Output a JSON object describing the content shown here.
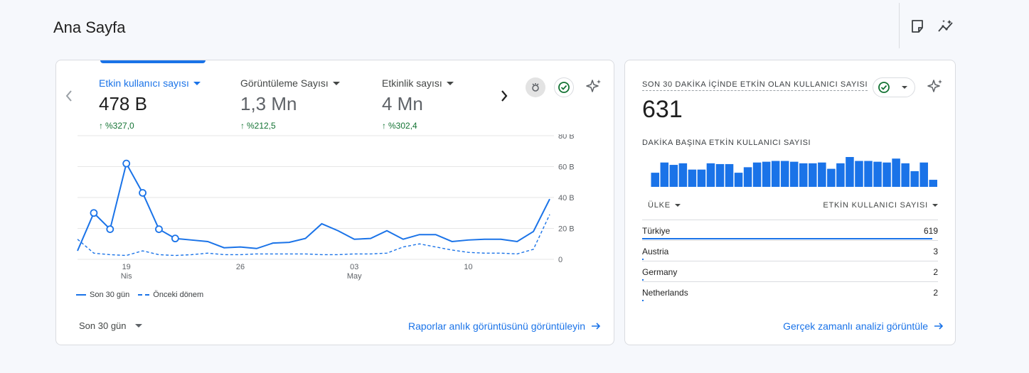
{
  "page": {
    "title": "Ana Sayfa"
  },
  "header_icons": [
    "note-icon",
    "insights-icon"
  ],
  "main_card": {
    "metrics": [
      {
        "label": "Etkin kullanıcı sayısı",
        "value": "478 B",
        "change": "%327,0",
        "active": true
      },
      {
        "label": "Görüntüleme Sayısı",
        "value": "1,3 Mn",
        "change": "%212,5",
        "active": false
      },
      {
        "label": "Etkinlik sayısı",
        "value": "4 Mn",
        "change": "%302,4",
        "active": false
      }
    ],
    "legend": {
      "current": "Son 30 gün",
      "previous": "Önceki dönem"
    },
    "range_label": "Son 30 gün",
    "link_label": "Raporlar anlık görüntüsünü görüntüleyin"
  },
  "chart_data": {
    "type": "line",
    "y_tick_labels": [
      "80 B",
      "60 B",
      "40 B",
      "20 B",
      "0"
    ],
    "ylim": [
      0,
      80
    ],
    "x_tick_labels": [
      {
        "day": "19",
        "month": "Nis",
        "index": 3
      },
      {
        "day": "26",
        "month": "",
        "index": 10
      },
      {
        "day": "03",
        "month": "May",
        "index": 17
      },
      {
        "day": "10",
        "month": "",
        "index": 24
      }
    ],
    "series": [
      {
        "name": "Son 30 gün",
        "style": "solid",
        "values": [
          5.5,
          30,
          19.5,
          62,
          43,
          19.5,
          13.5,
          12.5,
          11.5,
          7.5,
          8,
          7,
          10.5,
          11,
          13.5,
          23,
          18.5,
          13,
          13.5,
          18.5,
          13,
          16,
          16,
          11.5,
          12.5,
          13,
          13,
          11.5,
          18,
          39
        ],
        "markers": [
          1,
          2,
          3,
          4,
          5,
          6
        ]
      },
      {
        "name": "Önceki dönem",
        "style": "dashed",
        "values": [
          13,
          4,
          3,
          2.5,
          5.5,
          3,
          2.5,
          3,
          4,
          3,
          3,
          3.5,
          3.5,
          3.5,
          3.5,
          3,
          3,
          3.5,
          3.5,
          4,
          8,
          10,
          8,
          6,
          4.5,
          4,
          4,
          3.5,
          6.5,
          29
        ]
      }
    ],
    "color": "#1a73e8",
    "grid": true
  },
  "realtime_card": {
    "title": "SON 30 DAKİKA İÇİNDE ETKİN OLAN KULLANICI SAYISI",
    "value": "631",
    "subtitle": "DAKİKA BAŞINA ETKİN KULLANICI SAYISI",
    "minute_bars": [
      18,
      31,
      28,
      30,
      22,
      22,
      30,
      29,
      29,
      18,
      25,
      31,
      32,
      33,
      33,
      32,
      30,
      30,
      31,
      23,
      30,
      38,
      33,
      33,
      32,
      31,
      36,
      30,
      20,
      31,
      9
    ],
    "columns": {
      "country": "ÜLKE",
      "users": "ETKİN KULLANICI SAYISI"
    },
    "rows": [
      {
        "country": "Türkiye",
        "value": "619",
        "share": 0.98
      },
      {
        "country": "Austria",
        "value": "3",
        "share": 0.005
      },
      {
        "country": "Germany",
        "value": "2",
        "share": 0.004
      },
      {
        "country": "Netherlands",
        "value": "2",
        "share": 0.004
      }
    ],
    "link_label": "Gerçek zamanlı analizi görüntüle"
  }
}
